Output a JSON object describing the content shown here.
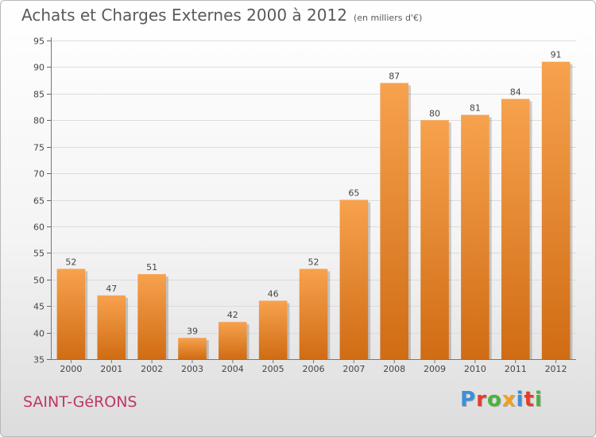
{
  "header": {
    "title": "Achats et Charges Externes 2000 à 2012",
    "subtitle": "(en milliers d'€)"
  },
  "footer": {
    "place": "SAINT-GéRONS",
    "logo": "Proxiti"
  },
  "colors": {
    "bar_top": "#f7a24e",
    "bar_bottom": "#d06c14",
    "logo_letters": [
      "#3b8fd9",
      "#e63c2d",
      "#4bb33c",
      "#f0a020",
      "#3b8fd9",
      "#e63c2d",
      "#4bb33c"
    ]
  },
  "chart_data": {
    "type": "bar",
    "title": "Achats et Charges Externes 2000 à 2012",
    "subtitle": "(en milliers d'€)",
    "xlabel": "",
    "ylabel": "",
    "categories": [
      "2000",
      "2001",
      "2002",
      "2003",
      "2004",
      "2005",
      "2006",
      "2007",
      "2008",
      "2009",
      "2010",
      "2011",
      "2012"
    ],
    "values": [
      52,
      47,
      51,
      39,
      42,
      46,
      52,
      65,
      87,
      80,
      81,
      84,
      91
    ],
    "ylim": [
      35,
      95
    ],
    "yticks": [
      35,
      40,
      45,
      50,
      55,
      60,
      65,
      70,
      75,
      80,
      85,
      90,
      95
    ],
    "grid": true
  }
}
